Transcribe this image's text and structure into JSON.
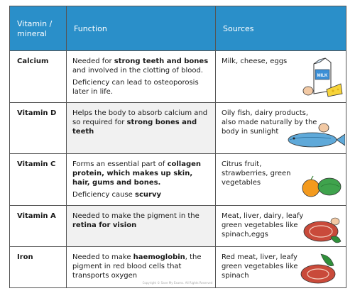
{
  "headers": {
    "col1": "Vitamin / mineral",
    "col2": "Function",
    "col3": "Sources"
  },
  "rows": [
    {
      "name": "Calcium",
      "function": [
        [
          {
            "t": "Needed for ",
            "b": false
          },
          {
            "t": "strong teeth and bones",
            "b": true
          },
          {
            "t": " and involved in the clotting of blood.",
            "b": false
          }
        ],
        [
          {
            "t": "Deficiency can lead to osteoporosis later in life.",
            "b": false
          }
        ]
      ],
      "sources": "Milk, cheese, eggs",
      "illustration_label": "MILK"
    },
    {
      "name": "Vitamin D",
      "function": [
        [
          {
            "t": "Helps the body to absorb calcium and so required for ",
            "b": false
          },
          {
            "t": "strong bones and teeth",
            "b": true
          }
        ]
      ],
      "sources": "Oily fish, dairy products, also made naturally by the body in sunlight"
    },
    {
      "name": "Vitamin C",
      "function": [
        [
          {
            "t": "Forms an essential part of ",
            "b": false
          },
          {
            "t": "collagen protein, which makes up skin, hair, gums and bones.",
            "b": true
          }
        ],
        [
          {
            "t": "Deficiency cause ",
            "b": false
          },
          {
            "t": "scurvy",
            "b": true
          }
        ]
      ],
      "sources": "Citrus fruit, strawberries, green vegetables"
    },
    {
      "name": "Vitamin A",
      "function": [
        [
          {
            "t": "Needed to make the pigment in the ",
            "b": false
          },
          {
            "t": "retina for vision",
            "b": true
          }
        ]
      ],
      "sources": "Meat, liver, dairy, leafy green vegetables like spinach,eggs"
    },
    {
      "name": "Iron",
      "function": [
        [
          {
            "t": "Needed to make ",
            "b": false
          },
          {
            "t": "haemoglobin",
            "b": true
          },
          {
            "t": ", the pigment in red blood cells that transports oxygen",
            "b": false
          }
        ]
      ],
      "sources": "Red meat, liver, leafy green vegetables like spinach"
    }
  ],
  "copyright": "Copyright © Save My Exams. All Rights Reserved"
}
